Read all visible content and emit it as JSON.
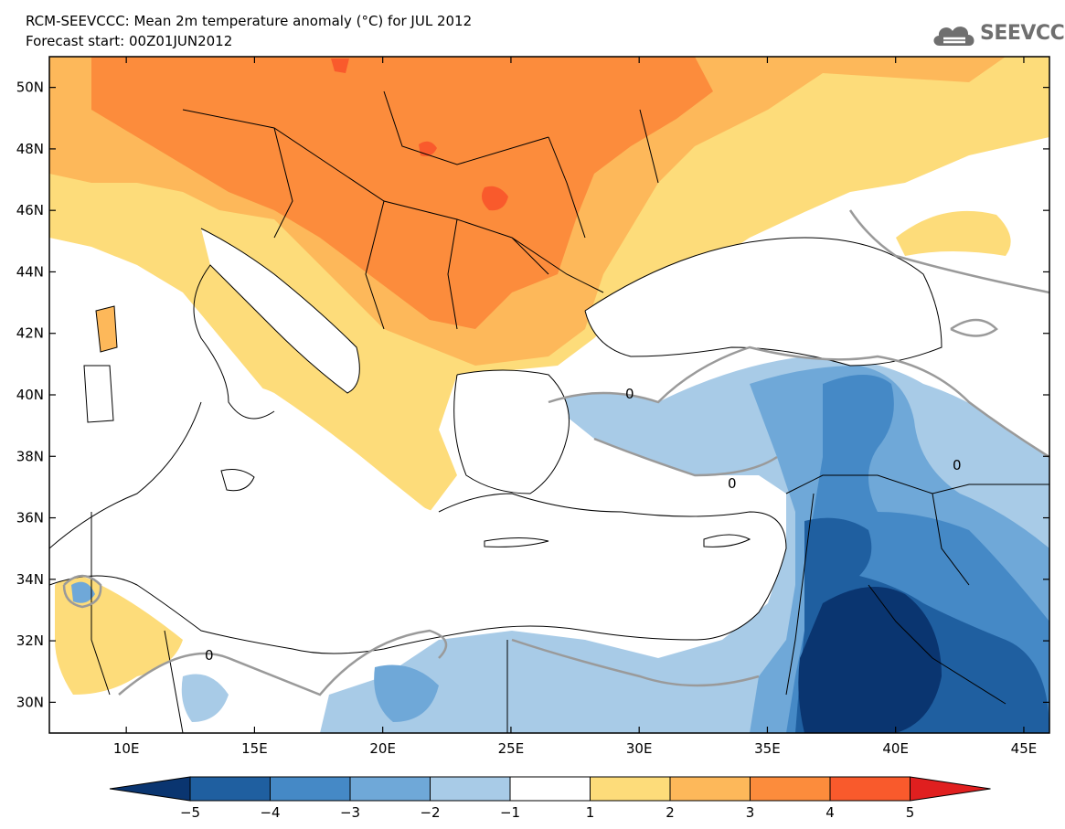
{
  "header": {
    "title": "RCM-SEEVCCC: Mean 2m temperature anomaly (°C) for JUL 2012",
    "subtitle": "Forecast start: 00Z01JUN2012"
  },
  "logo": {
    "text": "SEEVCCC",
    "icon": "cloud-icon",
    "color": "#6f6f6f"
  },
  "map": {
    "lon_range": [
      7,
      46
    ],
    "lat_range": [
      29,
      51
    ],
    "x_ticks": [
      "10E",
      "15E",
      "20E",
      "25E",
      "30E",
      "35E",
      "40E",
      "45E"
    ],
    "y_ticks": [
      "50N",
      "48N",
      "46N",
      "44N",
      "42N",
      "40N",
      "38N",
      "36N",
      "34N",
      "32N",
      "30N"
    ],
    "contour_label": "0"
  },
  "colorbar": {
    "ticks": [
      "−5",
      "−4",
      "−3",
      "−2",
      "−1",
      "1",
      "2",
      "3",
      "4",
      "5"
    ],
    "colors": {
      "below_-5": "#0a3570",
      "-5_-4": "#1f5fa0",
      "-4_-3": "#4589c6",
      "-3_-2": "#6fa8d8",
      "-2_-1": "#a8cbe7",
      "-1_1": "#ffffff",
      "1_2": "#fddc7a",
      "2_3": "#fdb85a",
      "3_4": "#fc8c3c",
      "4_5": "#f95a2c",
      "above_5": "#e01f1f"
    }
  }
}
